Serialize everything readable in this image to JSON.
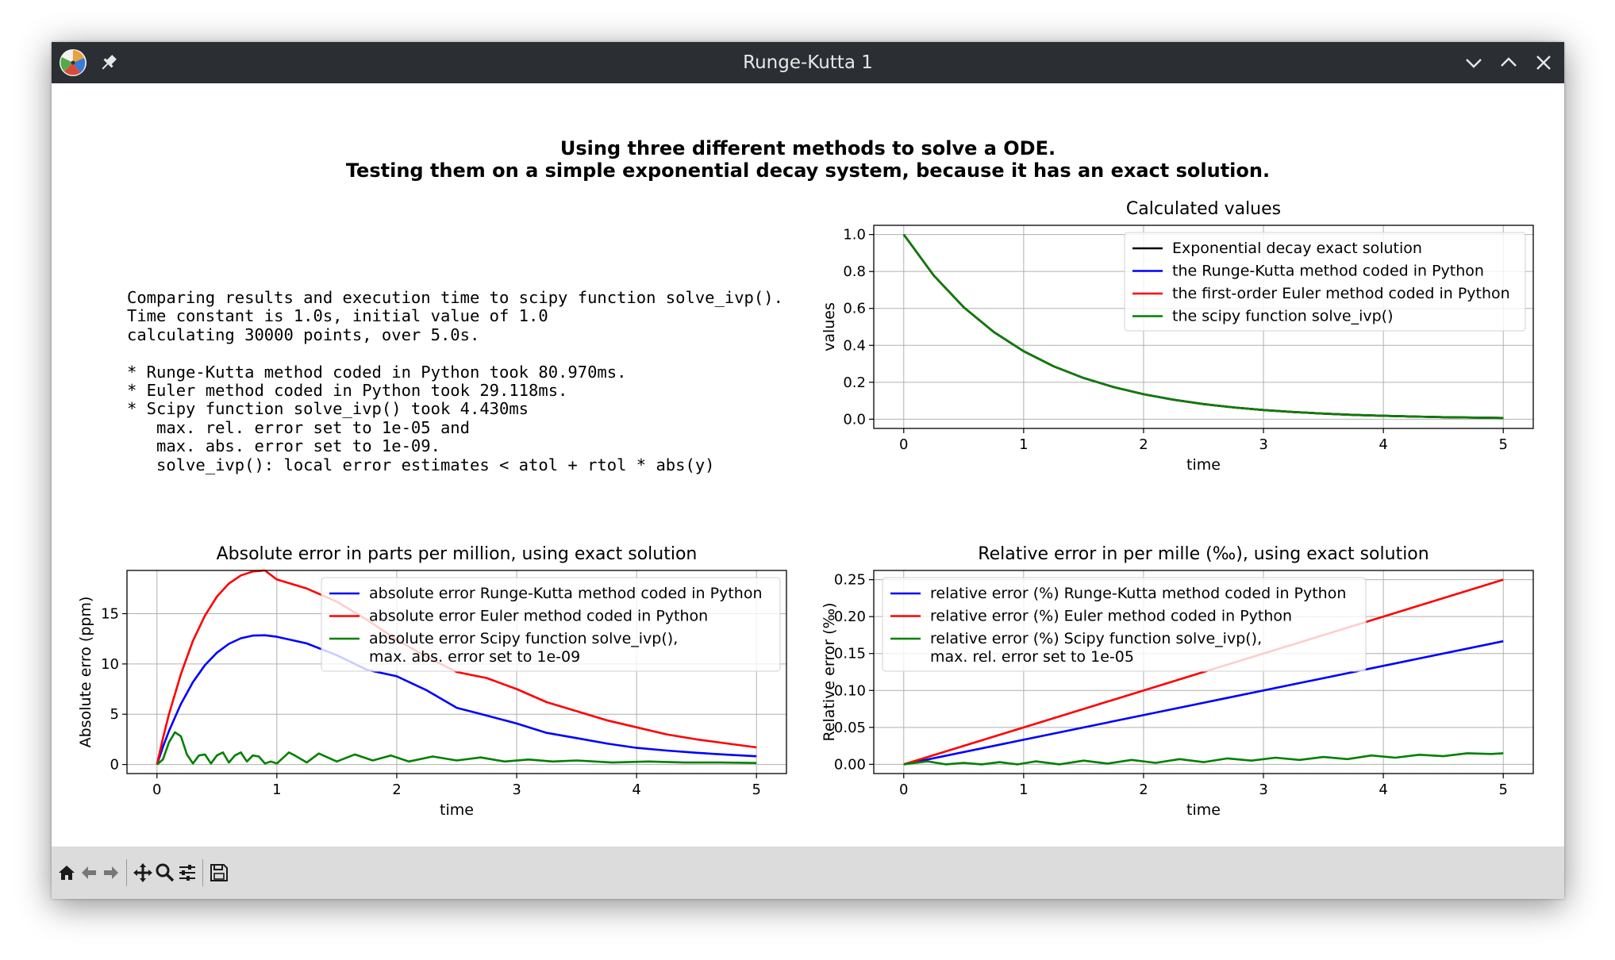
{
  "window": {
    "title": "Runge-Kutta 1",
    "icons": [
      "app-icon",
      "pin-icon",
      "minimize-icon",
      "maximize-icon",
      "close-icon"
    ]
  },
  "toolbar": {
    "buttons": [
      "home-icon",
      "back-icon",
      "forward-icon",
      "pan-icon",
      "zoom-icon",
      "configure-subplots-icon",
      "save-icon"
    ]
  },
  "suptitle": {
    "line1": "Using three different methods to solve a ODE.",
    "line2": "Testing them on a simple exponential decay system, because it has an exact solution."
  },
  "info_text": "Comparing results and execution time to scipy function solve_ivp().\nTime constant is 1.0s, initial value of 1.0\ncalculating 30000 points, over 5.0s.\n\n* Runge-Kutta method coded in Python took 80.970ms.\n* Euler method coded in Python took 29.118ms.\n* Scipy function solve_ivp() took 4.430ms\n   max. rel. error set to 1e-05 and\n   max. abs. error set to 1e-09.\n   solve_ivp(): local error estimates < atol + rtol * abs(y)",
  "chart_data": [
    {
      "type": "line",
      "title": "Calculated values",
      "xlabel": "time",
      "ylabel": "values",
      "xlim": [
        -0.25,
        5.25
      ],
      "ylim": [
        -0.05,
        1.05
      ],
      "xticks": [
        0,
        1,
        2,
        3,
        4,
        5
      ],
      "yticks": [
        0.0,
        0.2,
        0.4,
        0.6,
        0.8,
        1.0
      ],
      "ytick_labels": [
        "0.0",
        "0.2",
        "0.4",
        "0.6",
        "0.8",
        "1.0"
      ],
      "grid": true,
      "legend": "top-right",
      "series": [
        {
          "name": "Exponential decay exact solution",
          "color": "#000000",
          "x": [
            0,
            0.25,
            0.5,
            0.75,
            1,
            1.25,
            1.5,
            1.75,
            2,
            2.25,
            2.5,
            2.75,
            3,
            3.25,
            3.5,
            3.75,
            4,
            4.25,
            4.5,
            4.75,
            5
          ],
          "y": [
            1.0,
            0.7788,
            0.6065,
            0.4724,
            0.3679,
            0.2865,
            0.2231,
            0.1738,
            0.1353,
            0.1054,
            0.0821,
            0.0639,
            0.0498,
            0.0388,
            0.0302,
            0.0235,
            0.0183,
            0.0143,
            0.0111,
            0.0087,
            0.0067
          ]
        },
        {
          "name": "the Runge-Kutta method coded in Python",
          "color": "#0000ff",
          "x": [
            0,
            0.25,
            0.5,
            0.75,
            1,
            1.25,
            1.5,
            1.75,
            2,
            2.25,
            2.5,
            2.75,
            3,
            3.25,
            3.5,
            3.75,
            4,
            4.25,
            4.5,
            4.75,
            5
          ],
          "y": [
            1.0,
            0.7788,
            0.6065,
            0.4724,
            0.3679,
            0.2865,
            0.2231,
            0.1738,
            0.1353,
            0.1054,
            0.0821,
            0.0639,
            0.0498,
            0.0388,
            0.0302,
            0.0235,
            0.0183,
            0.0143,
            0.0111,
            0.0087,
            0.0067
          ]
        },
        {
          "name": "the first-order Euler method coded in Python",
          "color": "#ff0000",
          "x": [
            0,
            0.25,
            0.5,
            0.75,
            1,
            1.25,
            1.5,
            1.75,
            2,
            2.25,
            2.5,
            2.75,
            3,
            3.25,
            3.5,
            3.75,
            4,
            4.25,
            4.5,
            4.75,
            5
          ],
          "y": [
            1.0,
            0.7788,
            0.6065,
            0.4724,
            0.3679,
            0.2865,
            0.2231,
            0.1738,
            0.1353,
            0.1054,
            0.0821,
            0.0639,
            0.0498,
            0.0388,
            0.0302,
            0.0235,
            0.0183,
            0.0143,
            0.0111,
            0.0087,
            0.0067
          ]
        },
        {
          "name": "the scipy function solve_ivp()",
          "color": "#008000",
          "x": [
            0,
            0.25,
            0.5,
            0.75,
            1,
            1.25,
            1.5,
            1.75,
            2,
            2.25,
            2.5,
            2.75,
            3,
            3.25,
            3.5,
            3.75,
            4,
            4.25,
            4.5,
            4.75,
            5
          ],
          "y": [
            1.0,
            0.7788,
            0.6065,
            0.4724,
            0.3679,
            0.2865,
            0.2231,
            0.1738,
            0.1353,
            0.1054,
            0.0821,
            0.0639,
            0.0498,
            0.0388,
            0.0302,
            0.0235,
            0.0183,
            0.0143,
            0.0111,
            0.0087,
            0.0067
          ]
        }
      ]
    },
    {
      "type": "line",
      "title": "Absolute error in parts per million, using exact solution",
      "xlabel": "time",
      "ylabel": "Absolute erro (ppm)",
      "xlim": [
        -0.25,
        5.25
      ],
      "ylim": [
        -0.9,
        19.3
      ],
      "xticks": [
        0,
        1,
        2,
        3,
        4,
        5
      ],
      "yticks": [
        0,
        5,
        10,
        15
      ],
      "ytick_labels": [
        "0",
        "5",
        "10",
        "15"
      ],
      "grid": true,
      "legend": "top-right",
      "series": [
        {
          "name": "absolute error Runge-Kutta method coded in Python",
          "color": "#0000ff",
          "x": [
            0,
            0.05,
            0.1,
            0.2,
            0.3,
            0.4,
            0.5,
            0.6,
            0.7,
            0.8,
            0.9,
            1,
            1.25,
            1.5,
            1.75,
            2,
            2.25,
            2.5,
            2.75,
            3,
            3.25,
            3.5,
            3.75,
            4,
            4.25,
            4.5,
            4.75,
            5
          ],
          "y": [
            0,
            1.75,
            3.33,
            6.03,
            8.19,
            9.88,
            11.12,
            12.0,
            12.55,
            12.82,
            12.85,
            12.7,
            12.04,
            10.87,
            9.42,
            8.77,
            7.38,
            5.64,
            4.87,
            4.08,
            3.15,
            2.63,
            2.09,
            1.66,
            1.39,
            1.17,
            0.98,
            0.82
          ]
        },
        {
          "name": "absolute error Euler method coded in Python",
          "color": "#ff0000",
          "x": [
            0,
            0.05,
            0.1,
            0.2,
            0.3,
            0.4,
            0.5,
            0.6,
            0.7,
            0.8,
            0.9,
            1,
            1.25,
            1.5,
            1.75,
            2,
            2.25,
            2.5,
            2.75,
            3,
            3.25,
            3.5,
            3.75,
            4,
            4.25,
            4.5,
            4.75,
            5
          ],
          "y": [
            0,
            2.6,
            5.0,
            9.0,
            12.3,
            14.8,
            16.7,
            18.0,
            18.8,
            19.2,
            19.3,
            18.4,
            17.5,
            16.2,
            14.4,
            12.4,
            10.7,
            9.2,
            8.6,
            7.5,
            6.2,
            5.3,
            4.4,
            3.7,
            3.0,
            2.5,
            2.1,
            1.7
          ]
        },
        {
          "name": "absolute error Scipy function solve_ivp(),\nmax. abs. error set to 1e-09",
          "color": "#008000",
          "x": [
            0,
            0.05,
            0.1,
            0.15,
            0.2,
            0.25,
            0.3,
            0.35,
            0.4,
            0.45,
            0.5,
            0.55,
            0.6,
            0.65,
            0.7,
            0.75,
            0.8,
            0.85,
            0.9,
            0.95,
            1,
            1.1,
            1.15,
            1.25,
            1.35,
            1.5,
            1.65,
            1.8,
            1.95,
            2.1,
            2.3,
            2.5,
            2.7,
            2.9,
            3.1,
            3.3,
            3.5,
            3.8,
            4.1,
            4.4,
            4.7,
            5
          ],
          "y": [
            0,
            0.5,
            2.2,
            3.2,
            2.8,
            1.0,
            0.1,
            0.9,
            1.0,
            0.1,
            0.9,
            1.2,
            0.2,
            0.9,
            1.2,
            0.3,
            0.9,
            0.8,
            0.1,
            0.3,
            0.1,
            1.2,
            0.9,
            0.2,
            1.1,
            0.3,
            1.0,
            0.4,
            0.9,
            0.3,
            0.8,
            0.4,
            0.7,
            0.3,
            0.5,
            0.3,
            0.4,
            0.2,
            0.3,
            0.2,
            0.2,
            0.15
          ]
        }
      ]
    },
    {
      "type": "line",
      "title": "Relative error in per mille (‰), using exact solution",
      "xlabel": "time",
      "ylabel": "Relative error (‰)",
      "xlim": [
        -0.25,
        5.25
      ],
      "ylim": [
        -0.0125,
        0.2625
      ],
      "xticks": [
        0,
        1,
        2,
        3,
        4,
        5
      ],
      "yticks": [
        0.0,
        0.05,
        0.1,
        0.15,
        0.2,
        0.25
      ],
      "ytick_labels": [
        "0.00",
        "0.05",
        "0.10",
        "0.15",
        "0.20",
        "0.25"
      ],
      "grid": true,
      "legend": "top-left",
      "series": [
        {
          "name": "relative error (%) Runge-Kutta method coded in Python",
          "color": "#0000ff",
          "x": [
            0,
            5
          ],
          "y": [
            0,
            0.1667
          ]
        },
        {
          "name": "relative error (%) Euler method coded in Python",
          "color": "#ff0000",
          "x": [
            0,
            5
          ],
          "y": [
            0,
            0.25
          ]
        },
        {
          "name": "relative error (%) Scipy function solve_ivp(),\nmax. rel. error set to 1e-05",
          "color": "#008000",
          "x": [
            0,
            0.2,
            0.35,
            0.5,
            0.65,
            0.8,
            0.95,
            1.1,
            1.3,
            1.5,
            1.7,
            1.9,
            2.1,
            2.3,
            2.5,
            2.7,
            2.9,
            3.1,
            3.3,
            3.5,
            3.7,
            3.9,
            4.1,
            4.3,
            4.5,
            4.7,
            4.9,
            5
          ],
          "y": [
            0,
            0.004,
            0.0,
            0.002,
            0.0,
            0.003,
            0.0,
            0.004,
            0.0,
            0.005,
            0.001,
            0.006,
            0.002,
            0.007,
            0.003,
            0.008,
            0.005,
            0.009,
            0.006,
            0.01,
            0.007,
            0.012,
            0.009,
            0.013,
            0.011,
            0.015,
            0.014,
            0.015
          ]
        }
      ]
    }
  ]
}
